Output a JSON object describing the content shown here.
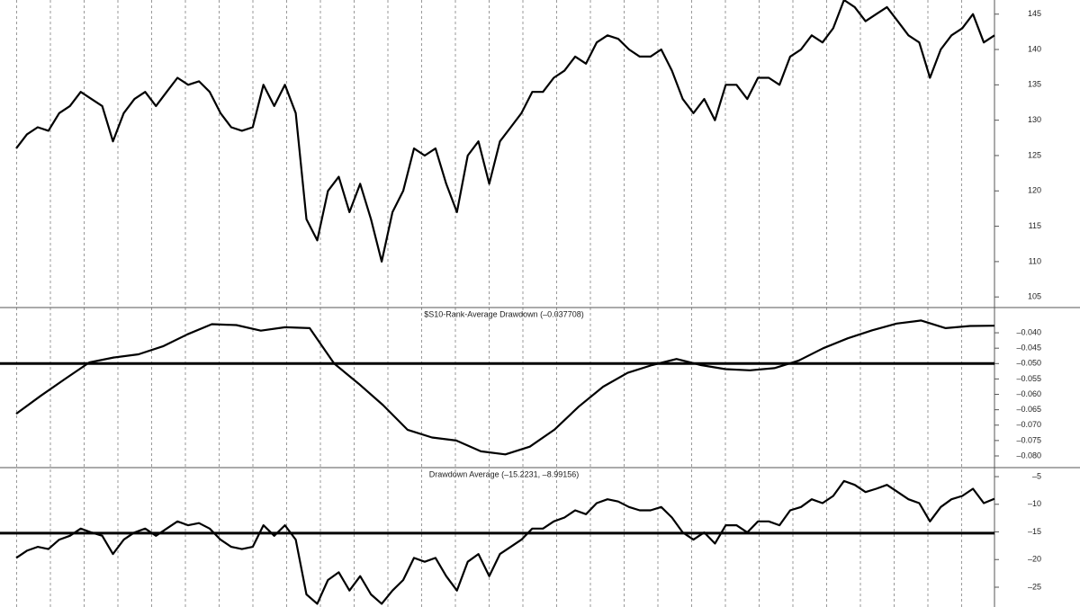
{
  "chart_data": [
    {
      "type": "line",
      "color": "#000000",
      "values": [
        126,
        128,
        129,
        128.5,
        131,
        132,
        134,
        133,
        132,
        127,
        131,
        133,
        134,
        132,
        134,
        136,
        135,
        135.5,
        134,
        131,
        129,
        128.5,
        129,
        135,
        132,
        135,
        131,
        116,
        113,
        120,
        122,
        117,
        121,
        116,
        110,
        117,
        120,
        126,
        125,
        126,
        121,
        117,
        125,
        127,
        121,
        127,
        129,
        131,
        134,
        134,
        136,
        137,
        139,
        138,
        141,
        142,
        141.5,
        140,
        139,
        139,
        140,
        137,
        133,
        131,
        133,
        130,
        135,
        135,
        133,
        136,
        136,
        135,
        139,
        140,
        142,
        141,
        143,
        147,
        146,
        144,
        145,
        146,
        144,
        142,
        141,
        136,
        140,
        142,
        143,
        145,
        141,
        142
      ],
      "ylim": [
        103.5,
        147
      ],
      "yticks": [
        105,
        110,
        115,
        120,
        125,
        130,
        135,
        140,
        145
      ]
    },
    {
      "type": "line",
      "title": "$S10-Rank-Average Drawdown (–0.037708)",
      "color": "#000000",
      "values": [
        -0.0663,
        -0.0605,
        -0.055,
        -0.0496,
        -0.048,
        -0.047,
        -0.0444,
        -0.0405,
        -0.0372,
        -0.0375,
        -0.0393,
        -0.0382,
        -0.0385,
        -0.05,
        -0.0565,
        -0.0635,
        -0.0715,
        -0.074,
        -0.075,
        -0.0785,
        -0.0795,
        -0.077,
        -0.0715,
        -0.064,
        -0.0575,
        -0.053,
        -0.0505,
        -0.0485,
        -0.0505,
        -0.0518,
        -0.0522,
        -0.0515,
        -0.049,
        -0.045,
        -0.0418,
        -0.0392,
        -0.037,
        -0.036,
        -0.0385,
        -0.0378,
        -0.0377
      ],
      "reference": -0.05,
      "ylim": [
        -0.0838,
        -0.0318
      ],
      "yticks": [
        {
          "value": -0.04,
          "label": "–0.040"
        },
        {
          "value": -0.045,
          "label": "–0.045"
        },
        {
          "value": -0.05,
          "label": "–0.050"
        },
        {
          "value": -0.055,
          "label": "–0.055"
        },
        {
          "value": -0.06,
          "label": "–0.060"
        },
        {
          "value": -0.065,
          "label": "–0.065"
        },
        {
          "value": -0.07,
          "label": "–0.070"
        },
        {
          "value": -0.075,
          "label": "–0.075"
        },
        {
          "value": -0.08,
          "label": "–0.080"
        }
      ]
    },
    {
      "type": "line",
      "title": "Drawdown Average (–15.2231, –8.99156)",
      "color": "#000000",
      "values": [
        -19.7,
        -18.4,
        -17.7,
        -18.1,
        -16.4,
        -15.7,
        -14.4,
        -15.1,
        -15.7,
        -19,
        -16.4,
        -15.1,
        -14.4,
        -15.7,
        -14.4,
        -13.1,
        -13.8,
        -13.4,
        -14.4,
        -16.4,
        -17.7,
        -18.1,
        -17.7,
        -13.8,
        -15.7,
        -13.8,
        -16.4,
        -26.3,
        -28,
        -23.7,
        -22.3,
        -25.6,
        -23,
        -26.3,
        -28,
        -25.6,
        -23.7,
        -19.7,
        -20.4,
        -19.7,
        -23,
        -25.6,
        -20.4,
        -19,
        -23,
        -19,
        -17.7,
        -16.4,
        -14.4,
        -14.4,
        -13.1,
        -12.4,
        -11.1,
        -11.8,
        -9.8,
        -9.1,
        -9.5,
        -10.5,
        -11.1,
        -11.1,
        -10.5,
        -12.4,
        -15.1,
        -16.4,
        -15.1,
        -17.1,
        -13.8,
        -13.8,
        -15.1,
        -13.1,
        -13.1,
        -13.8,
        -11.1,
        -10.5,
        -9.1,
        -9.8,
        -8.5,
        -5.8,
        -6.5,
        -7.8,
        -7.2,
        -6.5,
        -7.8,
        -9.1,
        -9.8,
        -13.1,
        -10.5,
        -9.1,
        -8.5,
        -7.2,
        -9.8,
        -8.99156
      ],
      "reference": -15.2231,
      "ylim": [
        -28.58,
        -3.37
      ],
      "yticks": [
        {
          "value": -5,
          "label": "–5"
        },
        {
          "value": -10,
          "label": "–10"
        },
        {
          "value": -15,
          "label": "–15"
        },
        {
          "value": -20,
          "label": "–20"
        },
        {
          "value": -25,
          "label": "–25"
        }
      ]
    }
  ]
}
